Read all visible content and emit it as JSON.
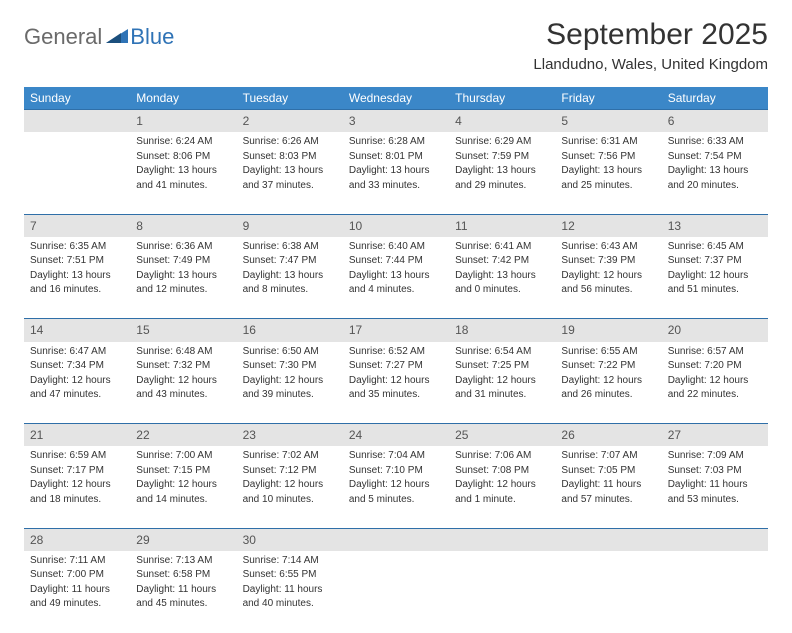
{
  "logo": {
    "text1": "General",
    "text2": "Blue"
  },
  "title": "September 2025",
  "location": "Llandudno, Wales, United Kingdom",
  "colors": {
    "header_bg": "#3b87c8",
    "header_text": "#ffffff",
    "daynum_bg": "#e4e4e4",
    "row_border": "#2f6fa8",
    "text": "#333333",
    "logo_gray": "#6a6a6a",
    "logo_blue": "#2f73b6"
  },
  "day_headers": [
    "Sunday",
    "Monday",
    "Tuesday",
    "Wednesday",
    "Thursday",
    "Friday",
    "Saturday"
  ],
  "weeks": [
    {
      "nums": [
        "",
        "1",
        "2",
        "3",
        "4",
        "5",
        "6"
      ],
      "cells": [
        null,
        {
          "sunrise": "Sunrise: 6:24 AM",
          "sunset": "Sunset: 8:06 PM",
          "day1": "Daylight: 13 hours",
          "day2": "and 41 minutes."
        },
        {
          "sunrise": "Sunrise: 6:26 AM",
          "sunset": "Sunset: 8:03 PM",
          "day1": "Daylight: 13 hours",
          "day2": "and 37 minutes."
        },
        {
          "sunrise": "Sunrise: 6:28 AM",
          "sunset": "Sunset: 8:01 PM",
          "day1": "Daylight: 13 hours",
          "day2": "and 33 minutes."
        },
        {
          "sunrise": "Sunrise: 6:29 AM",
          "sunset": "Sunset: 7:59 PM",
          "day1": "Daylight: 13 hours",
          "day2": "and 29 minutes."
        },
        {
          "sunrise": "Sunrise: 6:31 AM",
          "sunset": "Sunset: 7:56 PM",
          "day1": "Daylight: 13 hours",
          "day2": "and 25 minutes."
        },
        {
          "sunrise": "Sunrise: 6:33 AM",
          "sunset": "Sunset: 7:54 PM",
          "day1": "Daylight: 13 hours",
          "day2": "and 20 minutes."
        }
      ]
    },
    {
      "nums": [
        "7",
        "8",
        "9",
        "10",
        "11",
        "12",
        "13"
      ],
      "cells": [
        {
          "sunrise": "Sunrise: 6:35 AM",
          "sunset": "Sunset: 7:51 PM",
          "day1": "Daylight: 13 hours",
          "day2": "and 16 minutes."
        },
        {
          "sunrise": "Sunrise: 6:36 AM",
          "sunset": "Sunset: 7:49 PM",
          "day1": "Daylight: 13 hours",
          "day2": "and 12 minutes."
        },
        {
          "sunrise": "Sunrise: 6:38 AM",
          "sunset": "Sunset: 7:47 PM",
          "day1": "Daylight: 13 hours",
          "day2": "and 8 minutes."
        },
        {
          "sunrise": "Sunrise: 6:40 AM",
          "sunset": "Sunset: 7:44 PM",
          "day1": "Daylight: 13 hours",
          "day2": "and 4 minutes."
        },
        {
          "sunrise": "Sunrise: 6:41 AM",
          "sunset": "Sunset: 7:42 PM",
          "day1": "Daylight: 13 hours",
          "day2": "and 0 minutes."
        },
        {
          "sunrise": "Sunrise: 6:43 AM",
          "sunset": "Sunset: 7:39 PM",
          "day1": "Daylight: 12 hours",
          "day2": "and 56 minutes."
        },
        {
          "sunrise": "Sunrise: 6:45 AM",
          "sunset": "Sunset: 7:37 PM",
          "day1": "Daylight: 12 hours",
          "day2": "and 51 minutes."
        }
      ]
    },
    {
      "nums": [
        "14",
        "15",
        "16",
        "17",
        "18",
        "19",
        "20"
      ],
      "cells": [
        {
          "sunrise": "Sunrise: 6:47 AM",
          "sunset": "Sunset: 7:34 PM",
          "day1": "Daylight: 12 hours",
          "day2": "and 47 minutes."
        },
        {
          "sunrise": "Sunrise: 6:48 AM",
          "sunset": "Sunset: 7:32 PM",
          "day1": "Daylight: 12 hours",
          "day2": "and 43 minutes."
        },
        {
          "sunrise": "Sunrise: 6:50 AM",
          "sunset": "Sunset: 7:30 PM",
          "day1": "Daylight: 12 hours",
          "day2": "and 39 minutes."
        },
        {
          "sunrise": "Sunrise: 6:52 AM",
          "sunset": "Sunset: 7:27 PM",
          "day1": "Daylight: 12 hours",
          "day2": "and 35 minutes."
        },
        {
          "sunrise": "Sunrise: 6:54 AM",
          "sunset": "Sunset: 7:25 PM",
          "day1": "Daylight: 12 hours",
          "day2": "and 31 minutes."
        },
        {
          "sunrise": "Sunrise: 6:55 AM",
          "sunset": "Sunset: 7:22 PM",
          "day1": "Daylight: 12 hours",
          "day2": "and 26 minutes."
        },
        {
          "sunrise": "Sunrise: 6:57 AM",
          "sunset": "Sunset: 7:20 PM",
          "day1": "Daylight: 12 hours",
          "day2": "and 22 minutes."
        }
      ]
    },
    {
      "nums": [
        "21",
        "22",
        "23",
        "24",
        "25",
        "26",
        "27"
      ],
      "cells": [
        {
          "sunrise": "Sunrise: 6:59 AM",
          "sunset": "Sunset: 7:17 PM",
          "day1": "Daylight: 12 hours",
          "day2": "and 18 minutes."
        },
        {
          "sunrise": "Sunrise: 7:00 AM",
          "sunset": "Sunset: 7:15 PM",
          "day1": "Daylight: 12 hours",
          "day2": "and 14 minutes."
        },
        {
          "sunrise": "Sunrise: 7:02 AM",
          "sunset": "Sunset: 7:12 PM",
          "day1": "Daylight: 12 hours",
          "day2": "and 10 minutes."
        },
        {
          "sunrise": "Sunrise: 7:04 AM",
          "sunset": "Sunset: 7:10 PM",
          "day1": "Daylight: 12 hours",
          "day2": "and 5 minutes."
        },
        {
          "sunrise": "Sunrise: 7:06 AM",
          "sunset": "Sunset: 7:08 PM",
          "day1": "Daylight: 12 hours",
          "day2": "and 1 minute."
        },
        {
          "sunrise": "Sunrise: 7:07 AM",
          "sunset": "Sunset: 7:05 PM",
          "day1": "Daylight: 11 hours",
          "day2": "and 57 minutes."
        },
        {
          "sunrise": "Sunrise: 7:09 AM",
          "sunset": "Sunset: 7:03 PM",
          "day1": "Daylight: 11 hours",
          "day2": "and 53 minutes."
        }
      ]
    },
    {
      "nums": [
        "28",
        "29",
        "30",
        "",
        "",
        "",
        ""
      ],
      "cells": [
        {
          "sunrise": "Sunrise: 7:11 AM",
          "sunset": "Sunset: 7:00 PM",
          "day1": "Daylight: 11 hours",
          "day2": "and 49 minutes."
        },
        {
          "sunrise": "Sunrise: 7:13 AM",
          "sunset": "Sunset: 6:58 PM",
          "day1": "Daylight: 11 hours",
          "day2": "and 45 minutes."
        },
        {
          "sunrise": "Sunrise: 7:14 AM",
          "sunset": "Sunset: 6:55 PM",
          "day1": "Daylight: 11 hours",
          "day2": "and 40 minutes."
        },
        null,
        null,
        null,
        null
      ]
    }
  ]
}
